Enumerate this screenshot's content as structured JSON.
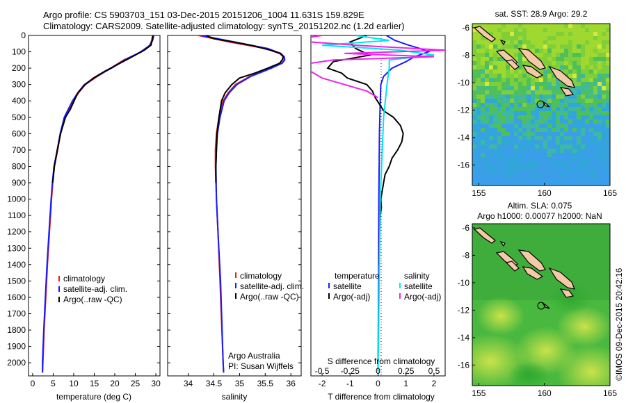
{
  "header": {
    "line1": "Argo profile: CS 5903703_151 03-Dec-2015 20151206_1004 11.631S 159.829E",
    "line2": "Climatology: CARS2009. Satellite-adjusted climatology: synTS_20151202.nc (1.2d earlier)"
  },
  "colors": {
    "climatology": "#e41a1c",
    "satellite": "#1a1aff",
    "argo": "#000000",
    "salinity_sat": "#00e5ee",
    "salinity_argo": "#ee22ee",
    "land": "#f4c9a8"
  },
  "chart_data": [
    {
      "type": "line",
      "panel": "temperature",
      "xlabel": "temperature (deg C)",
      "ylabel": "",
      "xlim": [
        -1,
        31
      ],
      "ylim": [
        2080,
        0
      ],
      "xticks": [
        "0",
        "5",
        "10",
        "15",
        "20",
        "25",
        "30"
      ],
      "yticks": [
        "0",
        "100",
        "200",
        "300",
        "400",
        "500",
        "600",
        "700",
        "800",
        "900",
        "1000",
        "1100",
        "1200",
        "1300",
        "1400",
        "1500",
        "1600",
        "1700",
        "1800",
        "1900",
        "2000"
      ],
      "legend": [
        "climatology",
        "satellite-adj. clim.",
        "Argo(..raw -QC)"
      ],
      "series": [
        {
          "name": "climatology",
          "depth": [
            0,
            30,
            60,
            100,
            150,
            200,
            250,
            300,
            350,
            400,
            450,
            500,
            600,
            700,
            800,
            900,
            1000,
            1200,
            1400,
            1600,
            1800,
            2000,
            2060
          ],
          "values": [
            29.2,
            29,
            28.5,
            26.5,
            22.2,
            19,
            15.8,
            12.8,
            11.2,
            9.9,
            8.8,
            7.8,
            6.8,
            6.1,
            5.3,
            4.9,
            4.6,
            4.1,
            3.6,
            3.2,
            2.8,
            2.5,
            2.4
          ]
        },
        {
          "name": "satellite-adj. clim.",
          "depth": [
            0,
            30,
            60,
            100,
            150,
            200,
            250,
            300,
            350,
            400,
            450,
            500,
            600,
            700,
            800,
            900,
            1000,
            1200,
            1400,
            1600,
            1800,
            2000,
            2060
          ],
          "values": [
            29.5,
            29.2,
            28.6,
            26.3,
            22.5,
            19.2,
            15.5,
            12.6,
            11,
            9.7,
            8.7,
            7.7,
            6.7,
            6,
            5.2,
            4.8,
            4.5,
            4,
            3.5,
            3.1,
            2.7,
            2.4,
            2.4
          ]
        },
        {
          "name": "Argo(..raw -QC)",
          "depth": [
            0,
            30,
            60,
            90,
            120,
            150,
            180,
            220,
            260,
            300,
            350,
            400,
            450,
            500,
            550,
            600,
            700,
            800,
            900
          ],
          "values": [
            29.3,
            29.1,
            28.8,
            27.2,
            25,
            22.8,
            20.5,
            17.5,
            14.8,
            12.8,
            11,
            10.1,
            9.2,
            8,
            7.4,
            6.8,
            6,
            5.3,
            4.9
          ]
        }
      ]
    },
    {
      "type": "line",
      "panel": "salinity",
      "xlabel": "salinity",
      "xlim": [
        33.6,
        36.2
      ],
      "ylim": [
        2080,
        0
      ],
      "xticks": [
        "34",
        "34.5",
        "35",
        "35.5",
        "36"
      ],
      "legend": [
        "climatology",
        "satellite-adj. clim.",
        "Argo(..raw -QC)"
      ],
      "annotation": [
        "Argo Australia",
        "PI: Susan Wijffels"
      ],
      "series": [
        {
          "name": "climatology",
          "depth": [
            0,
            40,
            80,
            110,
            130,
            150,
            170,
            200,
            250,
            300,
            350,
            400,
            500,
            600,
            700,
            800,
            1000,
            1200,
            1500,
            2000,
            2060
          ],
          "values": [
            34.2,
            34.8,
            35.5,
            35.78,
            35.85,
            35.87,
            35.82,
            35.6,
            35.2,
            34.92,
            34.78,
            34.68,
            34.6,
            34.55,
            34.53,
            34.53,
            34.55,
            34.58,
            34.62,
            34.68,
            34.69
          ]
        },
        {
          "name": "satellite-adj. clim.",
          "depth": [
            0,
            40,
            80,
            110,
            130,
            150,
            170,
            200,
            250,
            300,
            350,
            400,
            500,
            600,
            700,
            800,
            1000,
            1200,
            1500,
            2000,
            2060
          ],
          "values": [
            34.25,
            34.9,
            35.55,
            35.8,
            35.87,
            35.88,
            35.83,
            35.62,
            35.22,
            34.95,
            34.8,
            34.7,
            34.62,
            34.57,
            34.55,
            34.54,
            34.55,
            34.58,
            34.63,
            34.68,
            34.69
          ]
        },
        {
          "name": "Argo(..raw -QC)",
          "depth": [
            0,
            20,
            40,
            60,
            90,
            110,
            130,
            150,
            170,
            200,
            230,
            260,
            300,
            350,
            400,
            500,
            600,
            700,
            800,
            900
          ],
          "values": [
            34.35,
            34.5,
            34.88,
            35.22,
            35.6,
            35.8,
            35.85,
            35.83,
            35.78,
            35.55,
            35.3,
            35.0,
            34.85,
            34.72,
            34.65,
            34.6,
            34.56,
            34.55,
            34.54,
            34.54
          ]
        }
      ]
    },
    {
      "type": "line",
      "panel": "difference",
      "xlabel": "T difference from climatology",
      "xlabel_top": "S difference from climatology",
      "xlim": [
        -2.4,
        2.4
      ],
      "ylim": [
        2080,
        0
      ],
      "xticks": [
        "-2",
        "-1",
        "0",
        "1",
        "2"
      ],
      "xticks_s": [
        "-0.5",
        "-0.25",
        "0",
        "0.25",
        "0.5"
      ],
      "legend_headers": [
        "temperature",
        "salinity"
      ],
      "legend": [
        "satellite",
        "Argo(-adj)",
        "satellite",
        "Argo(-adj)"
      ],
      "series": [
        {
          "name": "temperature satellite",
          "depth": [
            0,
            30,
            60,
            80,
            100,
            130,
            160,
            200,
            250,
            300,
            400,
            600,
            1000,
            1500,
            2060
          ],
          "values": [
            0.3,
            0.6,
            1.1,
            1.5,
            1.8,
            1.3,
            1.0,
            0.5,
            0.2,
            0.1,
            0.08,
            0.05,
            0.03,
            0.02,
            0.0
          ]
        },
        {
          "name": "temperature Argo(-adj)",
          "depth": [
            0,
            40,
            80,
            120,
            160,
            200,
            230,
            260,
            300,
            340,
            380,
            420,
            460,
            500,
            550,
            600,
            650,
            700,
            750,
            800,
            850,
            900,
            950,
            1000,
            1050,
            1100,
            1200,
            1300,
            1400
          ],
          "values": [
            -0.4,
            -1.0,
            -0.8,
            -0.3,
            -1.6,
            -1.8,
            -1.3,
            -1.1,
            -0.4,
            -0.2,
            -0.1,
            0.05,
            0.2,
            0.55,
            0.8,
            0.9,
            0.85,
            0.7,
            0.5,
            0.4,
            0.25,
            0.2,
            0.15,
            0.1,
            0.12,
            0.08,
            0.06,
            0.05,
            0.04
          ]
        },
        {
          "name": "salinity satellite",
          "depth": [
            0,
            30,
            60,
            90,
            120,
            150,
            200,
            300,
            500,
            1000,
            2060
          ],
          "values": [
            -0.2,
            0.1,
            -0.5,
            0.2,
            0.5,
            0.1,
            0.1,
            0.08,
            0.05,
            0.02,
            0.0
          ]
        },
        {
          "name": "salinity Argo(-adj)",
          "depth": [
            0,
            30,
            60,
            90,
            110,
            130,
            150,
            180,
            220,
            260,
            300,
            340,
            380
          ],
          "values": [
            -0.5,
            -0.8,
            -0.2,
            0.6,
            -0.3,
            0.5,
            -0.4,
            -0.7,
            -0.6,
            -0.5,
            -0.3,
            -0.1,
            0.0
          ]
        }
      ]
    },
    {
      "type": "heatmap",
      "panel": "map-sst",
      "title": "sat. SST: 28.9  Argo: 29.2",
      "xlim": [
        154.5,
        165
      ],
      "ylim": [
        -17.5,
        -5.7
      ],
      "xticks": [
        "155",
        "160",
        "165"
      ],
      "yticks": [
        "-6",
        "-8",
        "-10",
        "-12",
        "-14",
        "-16"
      ],
      "argo_location": [
        159.829,
        -11.631
      ]
    },
    {
      "type": "heatmap",
      "panel": "map-sla",
      "title": "Altim. SLA: 0.075",
      "subtitle": "Argo h1000: 0.00077  h2000: NaN",
      "xlim": [
        154.5,
        165
      ],
      "ylim": [
        -17.5,
        -5.7
      ],
      "xticks": [
        "155",
        "160",
        "165"
      ],
      "yticks": [
        "-6",
        "-8",
        "-10",
        "-12",
        "-14",
        "-16"
      ],
      "argo_location": [
        159.829,
        -11.631
      ]
    }
  ],
  "credit": "©IMOS 09-Dec-2015 20:42:16"
}
